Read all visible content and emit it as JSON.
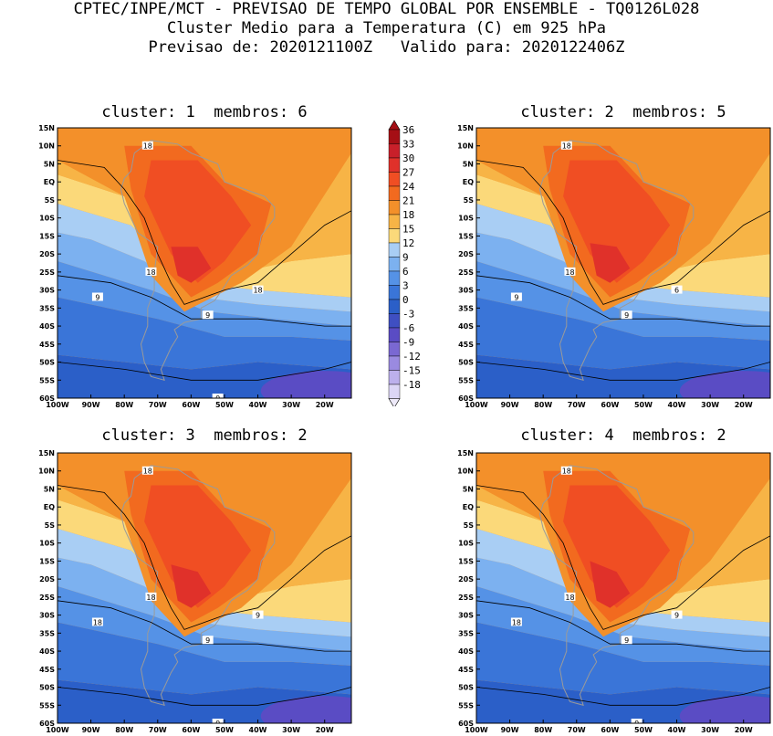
{
  "header": {
    "line1": "CPTEC/INPE/MCT - PREVISAO DE TEMPO GLOBAL POR ENSEMBLE - TQ0126L028",
    "line2": "Cluster Medio para a Temperatura (C) em 925 hPa",
    "line3": "Previsao de: 2020121100Z   Valido para: 2020122406Z"
  },
  "panels": [
    {
      "title": "cluster: 1  membros: 6"
    },
    {
      "title": "cluster: 2  membros: 5"
    },
    {
      "title": "cluster: 3  membros: 2"
    },
    {
      "title": "cluster: 4  membros: 2"
    }
  ],
  "axes": {
    "lat_labels": [
      "15N",
      "10N",
      "5N",
      "EQ",
      "5S",
      "10S",
      "15S",
      "20S",
      "25S",
      "30S",
      "35S",
      "40S",
      "45S",
      "50S",
      "55S",
      "60S"
    ],
    "lon_labels": [
      "100W",
      "90W",
      "80W",
      "70W",
      "60W",
      "50W",
      "40W",
      "30W",
      "20W"
    ]
  },
  "colorbar": {
    "levels": [
      "36",
      "33",
      "30",
      "27",
      "24",
      "21",
      "18",
      "15",
      "12",
      "9",
      "6",
      "3",
      "0",
      "-3",
      "-6",
      "-9",
      "-12",
      "-15",
      "-18"
    ],
    "colors": [
      "#a50f15",
      "#c8202a",
      "#e0312a",
      "#f04e23",
      "#f26a1f",
      "#f3902a",
      "#f7b446",
      "#fbd97a",
      "#a9cef4",
      "#7cb1f0",
      "#5592e6",
      "#3a75d8",
      "#2b5fc8",
      "#3f4fc2",
      "#5a4cc4",
      "#7a68d2",
      "#9a8ae0",
      "#bcb0ec",
      "#dcd6f6"
    ]
  },
  "contour_labels": [
    [
      "18",
      "18",
      "9",
      "9",
      "18",
      "0"
    ],
    [
      "18",
      "18",
      "9",
      "9",
      "6"
    ],
    [
      "18",
      "18",
      "18",
      "9",
      "9",
      "0"
    ],
    [
      "18",
      "18",
      "18",
      "9",
      "9",
      "0"
    ]
  ]
}
